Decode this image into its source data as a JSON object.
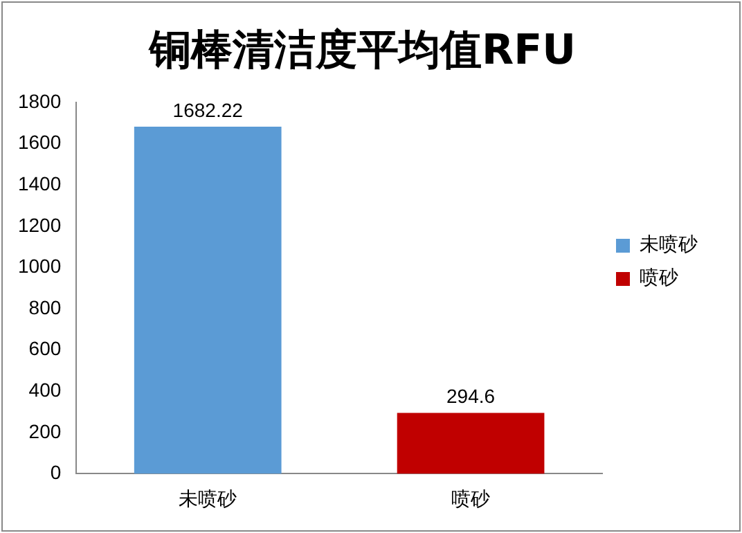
{
  "chart_data": {
    "type": "bar",
    "title": "铜棒清洁度平均值RFU",
    "categories": [
      "未喷砂",
      "喷砂"
    ],
    "series": [
      {
        "name": "未喷砂",
        "color": "#5b9bd5",
        "values": [
          1682.22,
          null
        ]
      },
      {
        "name": "喷砂",
        "color": "#c00000",
        "values": [
          null,
          294.6
        ]
      }
    ],
    "ylim": [
      0,
      1800
    ],
    "yticks": [
      0,
      200,
      400,
      600,
      800,
      1000,
      1200,
      1400,
      1600,
      1800
    ],
    "data_labels": true,
    "legend": "right",
    "grid": false
  }
}
